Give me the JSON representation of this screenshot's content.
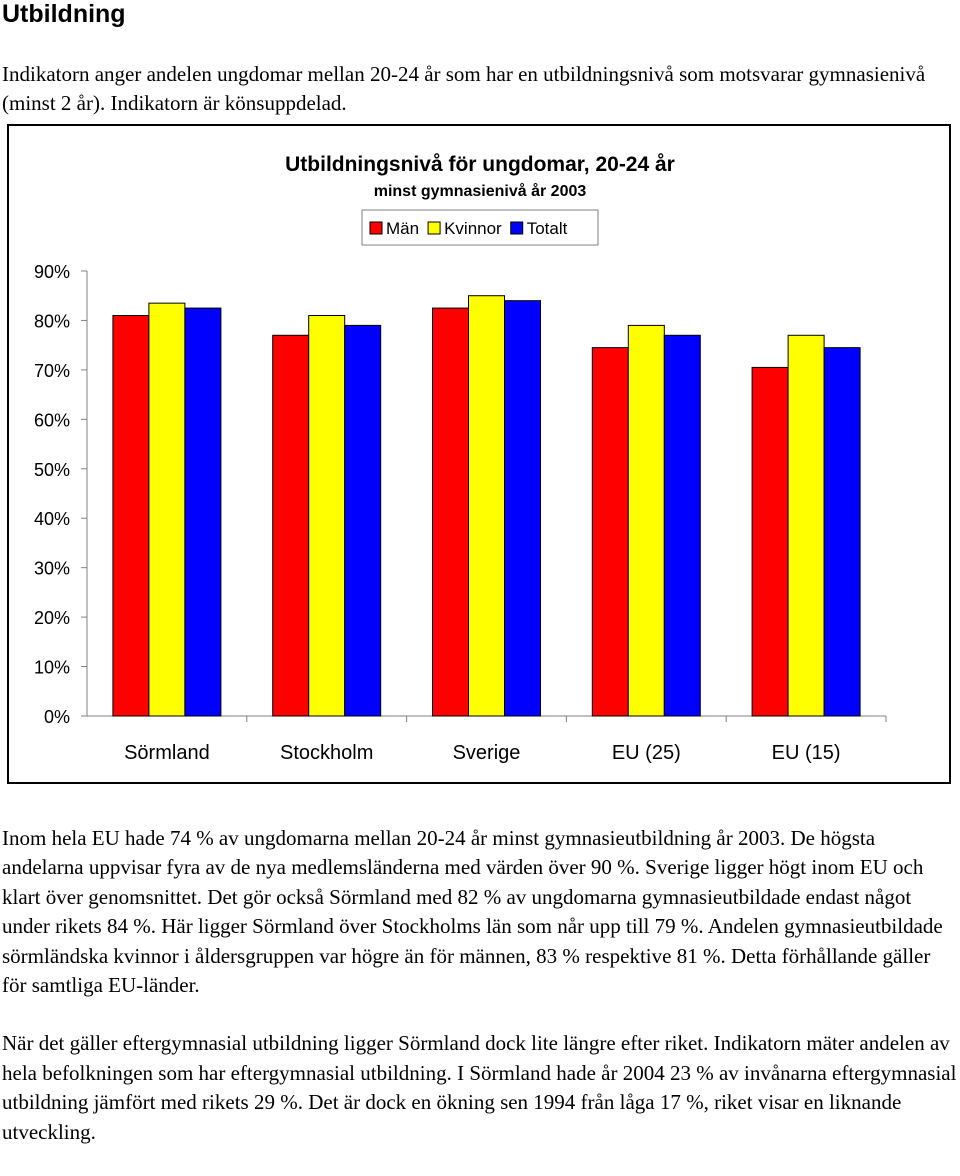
{
  "heading": "Utbildning",
  "intro": "Indikatorn anger andelen ungdomar mellan 20-24 år som har en utbildningsnivå som motsvarar gymnasienivå (minst 2 år). Indikatorn är könsuppdelad.",
  "chart_data": {
    "type": "bar",
    "title": "Utbildningsnivå för ungdomar, 20-24 år",
    "subtitle": "minst gymnasienivå år 2003",
    "categories": [
      "Sörmland",
      "Stockholm",
      "Sverige",
      "EU (25)",
      "EU (15)"
    ],
    "series": [
      {
        "name": "Män",
        "color": "#ff0000",
        "values": [
          81,
          77,
          82.5,
          74.5,
          70.5
        ]
      },
      {
        "name": "Kvinnor",
        "color": "#ffff00",
        "values": [
          83.5,
          81,
          85,
          79,
          77
        ]
      },
      {
        "name": "Totalt",
        "color": "#0000ff",
        "values": [
          82.5,
          79,
          84,
          77,
          74.5
        ]
      }
    ],
    "yticks": [
      "0%",
      "10%",
      "20%",
      "30%",
      "40%",
      "50%",
      "60%",
      "70%",
      "80%",
      "90%"
    ],
    "ylim": [
      0,
      90
    ],
    "grid": false,
    "legend": "top-center"
  },
  "paragraphs": [
    "Inom hela EU hade 74 % av ungdomarna mellan 20-24 år minst gymnasieutbildning år 2003. De högsta andelarna uppvisar fyra av de nya medlemsländerna med värden över 90 %. Sverige ligger högt inom EU och klart över genomsnittet. Det gör också Sörmland med 82 % av ungdomarna gymnasieutbildade endast något under rikets 84 %. Här ligger Sörmland över Stockholms län som når upp till 79 %. Andelen gymnasieutbildade sörmländska kvinnor i åldersgruppen var högre än för männen, 83 % respektive 81 %. Detta förhållande gäller för samtliga EU-länder.",
    "När det gäller eftergymnasial utbildning ligger Sörmland dock lite längre efter riket. Indikatorn mäter andelen av hela befolkningen som har eftergymnasial utbildning. I Sörmland hade år 2004 23 % av invånarna eftergymnasial utbildning jämfört med rikets 29 %. Det är dock en ökning sen 1994 från låga 17 %, riket visar en liknande utveckling."
  ]
}
